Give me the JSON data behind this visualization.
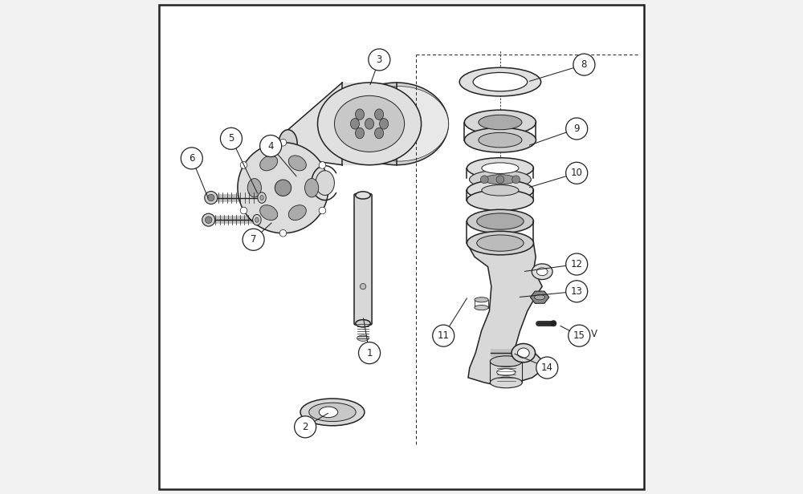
{
  "bg_color": "#f2f2f2",
  "border_color": "#222222",
  "line_color": "#222222",
  "figsize": [
    10.0,
    6.16
  ],
  "dpi": 100,
  "callouts": {
    "1": {
      "label": [
        4.35,
        2.85
      ],
      "point": [
        4.22,
        3.6
      ]
    },
    "2": {
      "label": [
        3.05,
        1.35
      ],
      "point": [
        3.55,
        1.65
      ]
    },
    "3": {
      "label": [
        4.55,
        8.8
      ],
      "point": [
        4.35,
        8.25
      ]
    },
    "4": {
      "label": [
        2.35,
        7.05
      ],
      "point": [
        2.9,
        6.4
      ]
    },
    "5": {
      "label": [
        1.55,
        7.2
      ],
      "point": [
        2.1,
        6.05
      ]
    },
    "6": {
      "label": [
        0.75,
        6.8
      ],
      "point": [
        1.1,
        5.95
      ]
    },
    "7": {
      "label": [
        2.0,
        5.15
      ],
      "point": [
        2.4,
        5.52
      ]
    },
    "8": {
      "label": [
        8.7,
        8.7
      ],
      "point": [
        7.55,
        8.35
      ]
    },
    "9": {
      "label": [
        8.55,
        7.4
      ],
      "point": [
        7.55,
        7.05
      ]
    },
    "10": {
      "label": [
        8.55,
        6.5
      ],
      "point": [
        7.55,
        6.2
      ]
    },
    "11": {
      "label": [
        5.85,
        3.2
      ],
      "point": [
        6.35,
        4.0
      ]
    },
    "12": {
      "label": [
        8.55,
        4.65
      ],
      "point": [
        7.45,
        4.5
      ]
    },
    "13": {
      "label": [
        8.55,
        4.1
      ],
      "point": [
        7.35,
        3.98
      ]
    },
    "14": {
      "label": [
        7.95,
        2.55
      ],
      "point": [
        7.25,
        2.85
      ]
    },
    "15": {
      "label": [
        8.6,
        3.2
      ],
      "point": [
        8.18,
        3.42
      ]
    }
  }
}
